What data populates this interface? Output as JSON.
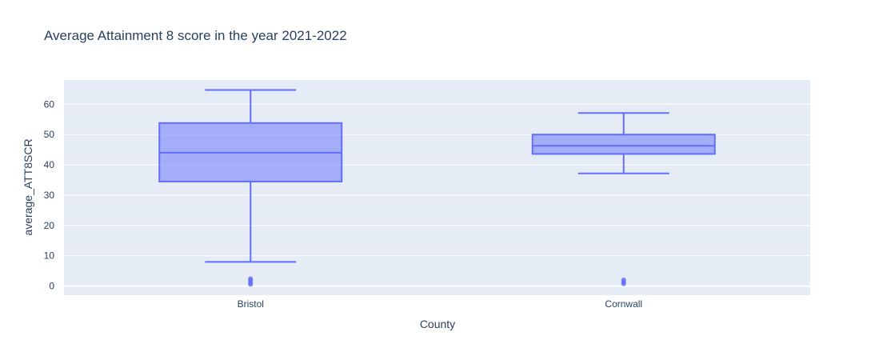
{
  "chart_data": {
    "type": "box",
    "title": "Average Attainment 8 score in the year 2021-2022",
    "xlabel": "County",
    "ylabel": "average_ATT8SCR",
    "categories": [
      "Bristol",
      "Cornwall"
    ],
    "yticks": [
      0,
      10,
      20,
      30,
      40,
      50,
      60
    ],
    "ylim": [
      -3,
      68
    ],
    "grid": true,
    "series": [
      {
        "boxes": [
          {
            "category": "Bristol",
            "lowerfence": 8.0,
            "q1": 34.5,
            "median": 44.0,
            "q3": 53.8,
            "upperfence": 64.7,
            "outliers": [
              2.4,
              1.8,
              1.2,
              0.6
            ]
          },
          {
            "category": "Cornwall",
            "lowerfence": 37.2,
            "q1": 43.6,
            "median": 46.3,
            "q3": 50.0,
            "upperfence": 57.1,
            "outliers": [
              2.0,
              1.3,
              0.8
            ]
          }
        ]
      }
    ],
    "colors": {
      "line": "#636efa",
      "fill": "rgba(99,110,250,0.5)",
      "plot_bg": "#e5ecf6",
      "grid": "#ffffff",
      "text": "#2a3f5f"
    }
  }
}
